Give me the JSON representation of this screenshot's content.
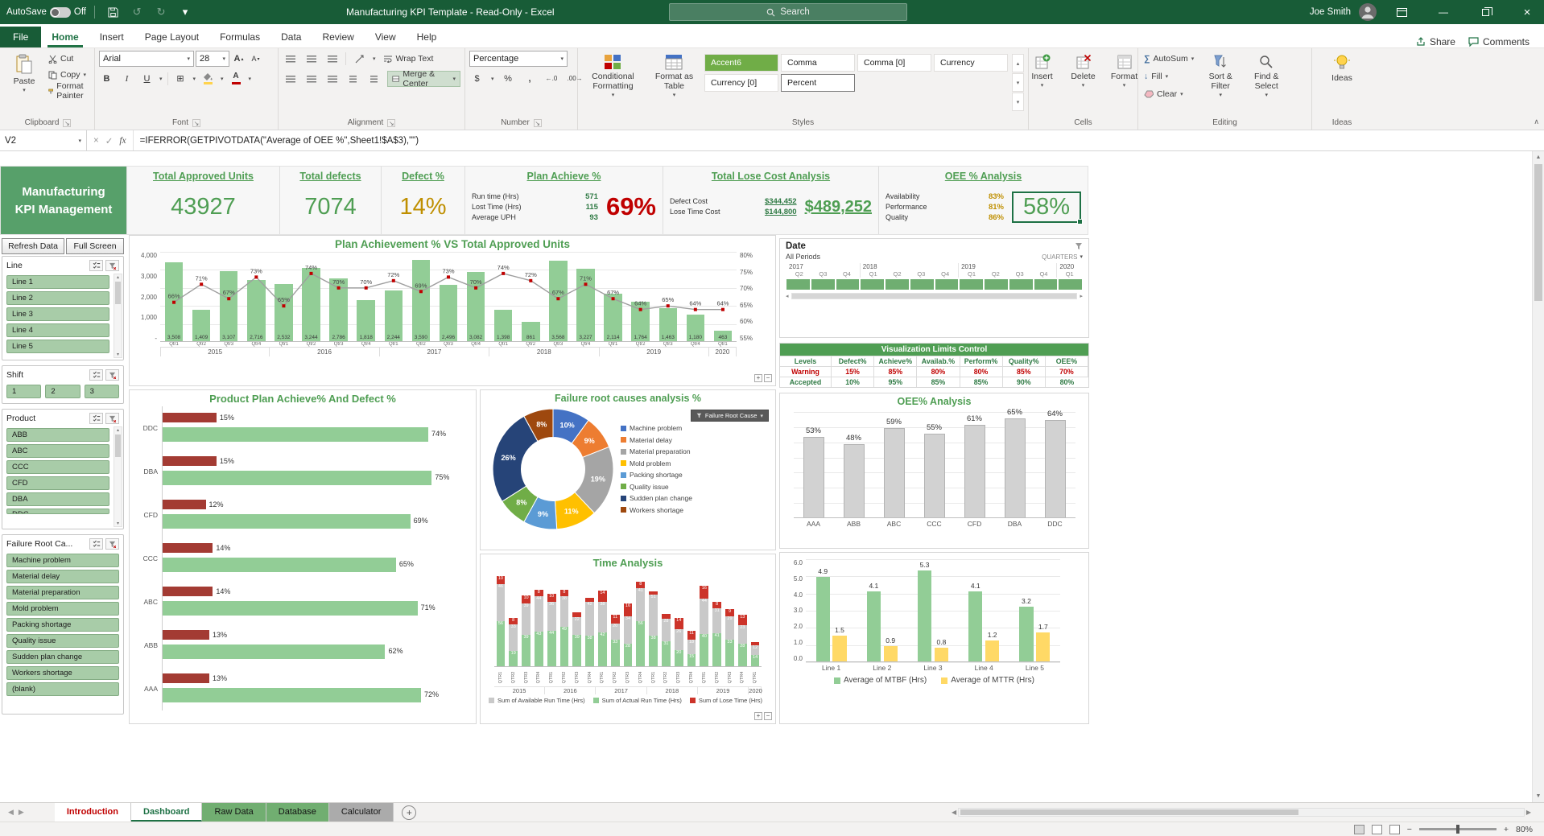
{
  "titlebar": {
    "autosave_label": "AutoSave",
    "autosave_state": "Off",
    "title": "Manufacturing KPI Template  -  Read-Only  -  Excel",
    "search_placeholder": "Search",
    "user_name": "Joe Smith"
  },
  "ribbon": {
    "tabs": [
      "File",
      "Home",
      "Insert",
      "Page Layout",
      "Formulas",
      "Data",
      "Review",
      "View",
      "Help"
    ],
    "active_tab": "Home",
    "share_label": "Share",
    "comments_label": "Comments",
    "clipboard": {
      "group_label": "Clipboard",
      "paste": "Paste",
      "cut": "Cut",
      "copy": "Copy",
      "format_painter": "Format Painter"
    },
    "font": {
      "group_label": "Font",
      "family": "Arial",
      "size": "28"
    },
    "alignment": {
      "group_label": "Alignment",
      "wrap_text": "Wrap Text",
      "merge_center": "Merge & Center"
    },
    "number": {
      "group_label": "Number",
      "format": "Percentage"
    },
    "styles": {
      "group_label": "Styles",
      "conditional_formatting": "Conditional Formatting",
      "format_as_table": "Format as Table",
      "gallery": [
        "Accent6",
        "Comma",
        "Comma [0]",
        "Currency",
        "Currency [0]",
        "Percent"
      ]
    },
    "cells": {
      "group_label": "Cells",
      "insert": "Insert",
      "delete": "Delete",
      "format": "Format"
    },
    "editing": {
      "group_label": "Editing",
      "autosum": "AutoSum",
      "fill": "Fill",
      "clear": "Clear",
      "sort_filter": "Sort & Filter",
      "find_select": "Find & Select"
    },
    "ideas": {
      "group_label": "Ideas",
      "ideas": "Ideas"
    }
  },
  "formula_bar": {
    "name_box": "V2",
    "formula": "=IFERROR(GETPIVOTDATA(\"Average of OEE %\",Sheet1!$A$3),\"\")"
  },
  "dashboard": {
    "app_title": [
      "Manufacturing",
      "KPI Management"
    ],
    "kpi_cards": [
      {
        "title": "Total Approved Units",
        "value": "43927",
        "tone": "green"
      },
      {
        "title": "Total defects",
        "value": "7074",
        "tone": "green"
      },
      {
        "title": "Defect %",
        "value": "14%",
        "tone": "amber"
      },
      {
        "title": "Plan Achieve %",
        "value": "69%",
        "tone": "red",
        "rows": [
          [
            "Run time (Hrs)",
            "571"
          ],
          [
            "Lost Time (Hrs)",
            "115"
          ],
          [
            "Average UPH",
            "93"
          ]
        ]
      },
      {
        "title": "Total Lose Cost Analysis",
        "value": "$489,252",
        "tone": "green-underline",
        "rows": [
          [
            "Defect Cost",
            "$344,452"
          ],
          [
            "Lose Time Cost",
            "$144,800"
          ]
        ]
      },
      {
        "title": "OEE % Analysis",
        "value": "58%",
        "tone": "green-selected",
        "rows": [
          [
            "Availability",
            "83%"
          ],
          [
            "Performance",
            "81%"
          ],
          [
            "Quality",
            "86%"
          ]
        ]
      }
    ],
    "sidebar": {
      "buttons": [
        "Refresh Data",
        "Full Screen"
      ],
      "slicers": [
        {
          "title": "Line",
          "layout": "vertical",
          "scrollbar": true,
          "items": [
            "Line 1",
            "Line 2",
            "Line 3",
            "Line 4",
            "Line 5"
          ]
        },
        {
          "title": "Shift",
          "layout": "horizontal",
          "scrollbar": false,
          "items": [
            "1",
            "2",
            "3"
          ]
        },
        {
          "title": "Product",
          "layout": "vertical",
          "scrollbar": true,
          "items": [
            "ABB",
            "ABC",
            "CCC",
            "CFD",
            "DBA"
          ],
          "partial_item": "DDC"
        },
        {
          "title": "Failure Root Ca...",
          "layout": "vertical",
          "scrollbar": false,
          "items": [
            "Machine problem",
            "Material delay",
            "Material preparation",
            "Mold problem",
            "Packing shortage",
            "Quality issue",
            "Sudden plan change",
            "Workers shortage",
            "(blank)"
          ]
        }
      ]
    },
    "date_slicer": {
      "title": "Date",
      "range_label": "All Periods",
      "granularity": "QUARTERS",
      "years": [
        {
          "label": "2017",
          "quarters": [
            "Q2",
            "Q3",
            "Q4"
          ]
        },
        {
          "label": "2018",
          "quarters": [
            "Q1",
            "Q2",
            "Q3",
            "Q4"
          ]
        },
        {
          "label": "2019",
          "quarters": [
            "Q1",
            "Q2",
            "Q3",
            "Q4"
          ]
        },
        {
          "label": "2020",
          "quarters": [
            "Q1"
          ]
        }
      ]
    },
    "limits_table": {
      "title": "Visualization Limits Control",
      "headers": [
        "Levels",
        "Defect%",
        "Achieve%",
        "Availab.%",
        "Perform%",
        "Quality%",
        "OEE%"
      ],
      "rows": [
        {
          "label": "Warning",
          "tone": "warning",
          "values": [
            "15%",
            "85%",
            "80%",
            "80%",
            "85%",
            "70%"
          ]
        },
        {
          "label": "Accepted",
          "tone": "accepted",
          "values": [
            "10%",
            "95%",
            "85%",
            "85%",
            "90%",
            "80%"
          ]
        }
      ]
    },
    "donut_field_button": "Failure Root Cause"
  },
  "chart_data": [
    {
      "id": "plan-achievement-combo",
      "type": "bar",
      "subtype": "combo-bar-line",
      "title": "Plan Achievement % VS Total Approved Units",
      "categories": [
        "Qtr1",
        "Qtr2",
        "Qtr3",
        "Qtr4",
        "Qtr1",
        "Qtr2",
        "Qtr3",
        "Qtr4",
        "Qtr1",
        "Qtr2",
        "Qtr3",
        "Qtr4",
        "Qtr1",
        "Qtr2",
        "Qtr3",
        "Qtr4",
        "Qtr1",
        "Qtr2",
        "Qtr3",
        "Qtr4",
        "Qtr1"
      ],
      "year_groups": [
        {
          "label": "2015",
          "count": 4
        },
        {
          "label": "2016",
          "count": 4
        },
        {
          "label": "2017",
          "count": 4
        },
        {
          "label": "2018",
          "count": 4
        },
        {
          "label": "2019",
          "count": 4
        },
        {
          "label": "2020",
          "count": 1
        }
      ],
      "series": [
        {
          "name": "Total Approved Units",
          "type": "bar",
          "values": [
            3508,
            1409,
            3107,
            2716,
            2532,
            3244,
            2786,
            1818,
            2244,
            3590,
            2496,
            3082,
            1398,
            861,
            3568,
            3227,
            2114,
            1764,
            1463,
            1180,
            463
          ]
        },
        {
          "name": "Plan Achievement %",
          "type": "line",
          "values": [
            66,
            71,
            67,
            73,
            65,
            74,
            70,
            70,
            72,
            69,
            73,
            70,
            74,
            72,
            67,
            71,
            67,
            64,
            65,
            64,
            64
          ]
        }
      ],
      "left_axis_ticks": [
        "4,000",
        "3,000",
        "2,000",
        "1,000",
        "-"
      ],
      "right_axis_ticks": [
        "80%",
        "75%",
        "70%",
        "65%",
        "60%",
        "55%"
      ],
      "left_max": 4000,
      "right_range": [
        55,
        80
      ]
    },
    {
      "id": "product-plan-defect",
      "type": "bar",
      "subtype": "horizontal-pair",
      "title": "Product Plan Achieve% And  Defect %",
      "categories": [
        "DDC",
        "DBA",
        "CFD",
        "CCC",
        "ABC",
        "ABB",
        "AAA"
      ],
      "series": [
        {
          "name": "Defect %",
          "values": [
            15,
            15,
            12,
            14,
            14,
            13,
            13
          ]
        },
        {
          "name": "Achieve %",
          "values": [
            74,
            75,
            69,
            65,
            71,
            62,
            72
          ]
        }
      ],
      "xlim": [
        0,
        85
      ]
    },
    {
      "id": "failure-root-causes",
      "type": "pie",
      "subtype": "donut",
      "title": "Failure root causes analysis %",
      "labels": [
        "Machine problem",
        "Material delay",
        "Material preparation",
        "Mold problem",
        "Packing shortage",
        "Quality issue",
        "Sudden plan change",
        "Workers shortage"
      ],
      "values": [
        10,
        9,
        19,
        11,
        9,
        8,
        26,
        8
      ],
      "colors": [
        "#4472C4",
        "#ED7D31",
        "#A5A5A5",
        "#FFC000",
        "#5B9BD5",
        "#70AD47",
        "#264478",
        "#9E480E"
      ]
    },
    {
      "id": "oee-by-product",
      "type": "bar",
      "title": "OEE% Analysis",
      "categories": [
        "AAA",
        "ABB",
        "ABC",
        "CCC",
        "CFD",
        "DBA",
        "DDC"
      ],
      "values": [
        53,
        48,
        59,
        55,
        61,
        65,
        64
      ],
      "labels": [
        "53%",
        "48%",
        "59%",
        "55%",
        "61%",
        "65%",
        "64%"
      ],
      "ylim": [
        0,
        70
      ]
    },
    {
      "id": "time-analysis",
      "type": "bar",
      "subtype": "stacked",
      "title": "Time Analysis",
      "categories": [
        "QTR1",
        "QTR2",
        "QTR3",
        "QTR4",
        "QTR1",
        "QTR2",
        "QTR3",
        "QTR4",
        "QTR1",
        "QTR2",
        "QTR3",
        "QTR4",
        "QTR1",
        "QTR2",
        "QTR3",
        "QTR4",
        "QTR1",
        "QTR2",
        "QTR3",
        "QTR4",
        "QTR1"
      ],
      "year_groups": [
        {
          "label": "2015",
          "count": 4
        },
        {
          "label": "2016",
          "count": 4
        },
        {
          "label": "2017",
          "count": 4
        },
        {
          "label": "2018",
          "count": 4
        },
        {
          "label": "2019",
          "count": 4
        },
        {
          "label": "2020",
          "count": 1
        }
      ],
      "series": [
        {
          "name": "Sum of Actual Run Time (Hrs)",
          "values": [
            56,
            19,
            39,
            43,
            44,
            49,
            39,
            38,
            42,
            33,
            28,
            56,
            38,
            31,
            20,
            15,
            40,
            41,
            33,
            28,
            14
          ]
        },
        {
          "name": "Sum of Available Run Time (Hrs)",
          "values": [
            46,
            33,
            39,
            44,
            36,
            38,
            22,
            42,
            38,
            20,
            34,
            41,
            51,
            28,
            26,
            18,
            44,
            31,
            29,
            23,
            12
          ]
        },
        {
          "name": "Sum of Lose Time (Hrs)",
          "values": [
            10,
            8,
            10,
            8,
            10,
            8,
            6,
            5,
            14,
            11,
            16,
            8,
            4,
            6,
            14,
            11,
            16,
            8,
            9,
            13,
            4
          ]
        }
      ],
      "legend": [
        "Sum of Available Run Time (Hrs)",
        "Sum of Actual Run Time (Hrs)",
        "Sum of Lose Time (Hrs)"
      ]
    },
    {
      "id": "mtbf-mttr",
      "type": "bar",
      "subtype": "grouped",
      "title": "",
      "categories": [
        "Line 1",
        "Line 2",
        "Line 3",
        "Line 4",
        "Line 5"
      ],
      "series": [
        {
          "name": "Average of MTBF (Hrs)",
          "values": [
            4.9,
            4.1,
            5.3,
            4.1,
            3.2
          ]
        },
        {
          "name": "Average of MTTR (Hrs)",
          "values": [
            1.5,
            0.9,
            0.8,
            1.2,
            1.7
          ]
        }
      ],
      "ylim": [
        0,
        6
      ],
      "yticks": [
        "6.0",
        "5.0",
        "4.0",
        "3.0",
        "2.0",
        "1.0",
        "0.0"
      ]
    }
  ],
  "sheet_tabs": {
    "tabs": [
      {
        "label": "Introduction",
        "style": "intro"
      },
      {
        "label": "Dashboard",
        "style": "active"
      },
      {
        "label": "Raw Data",
        "style": "green"
      },
      {
        "label": "Database",
        "style": "green"
      },
      {
        "label": "Calculator",
        "style": "gray"
      }
    ]
  },
  "status_bar": {
    "zoom_level": "80%"
  },
  "icons": {
    "dropdown": "▾",
    "launcher": "↘",
    "undo": "↺",
    "redo": "↻",
    "bold": "B",
    "italic": "I",
    "underline": "U",
    "borders": "⊞",
    "font_letter": "A",
    "grow": "▴",
    "shrink": "▾",
    "dollar": "$",
    "percent": "%",
    "comma": ",",
    "inc_decimal": "←.0",
    "dec_decimal": ".00→",
    "sigma": "∑",
    "fill": "↓",
    "close": "×",
    "minimize": "—",
    "nav_left": "◀",
    "nav_right": "▶",
    "tiny_left": "◂",
    "tiny_right": "▸",
    "scroll_up": "▲",
    "scroll_down": "▼",
    "small_up": "▴",
    "small_down": "▾",
    "plus": "+",
    "minus": "−",
    "collapse": "∧",
    "check": "✓",
    "cancel": "×",
    "fx": "fx"
  },
  "colors": {
    "titlebar_green": "#185C37",
    "excel_green": "#217346",
    "kpi_green": "#4F9E53",
    "amber": "#BF8F00",
    "red": "#C00000",
    "bar_green": "#92CD96",
    "bar_gray": "#C9C9C9",
    "bar_red": "#A33B33",
    "bright_red": "#CC3329",
    "bar_yellow": "#FFD966",
    "line_gray": "#9E9E9E",
    "slicer_green": "#A8CCA8",
    "header_block_green": "#57A06A",
    "accent6": "#70AD47"
  }
}
